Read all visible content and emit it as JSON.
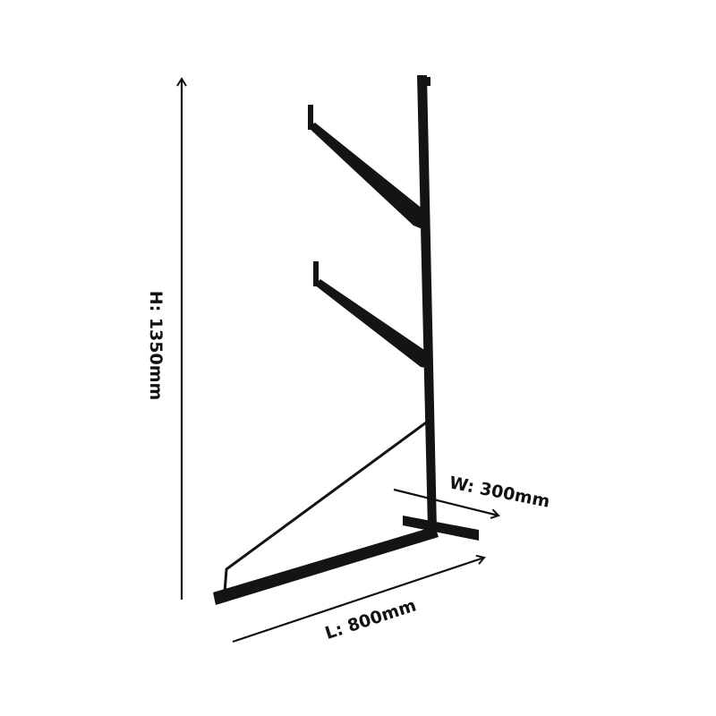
{
  "dimensions": {
    "height_label": "H: 1350mm",
    "width_label": "W: 300mm",
    "length_label": "L: 800mm"
  },
  "colors": {
    "frame": "#141414",
    "annotation": "#111111",
    "background": "#ffffff"
  }
}
